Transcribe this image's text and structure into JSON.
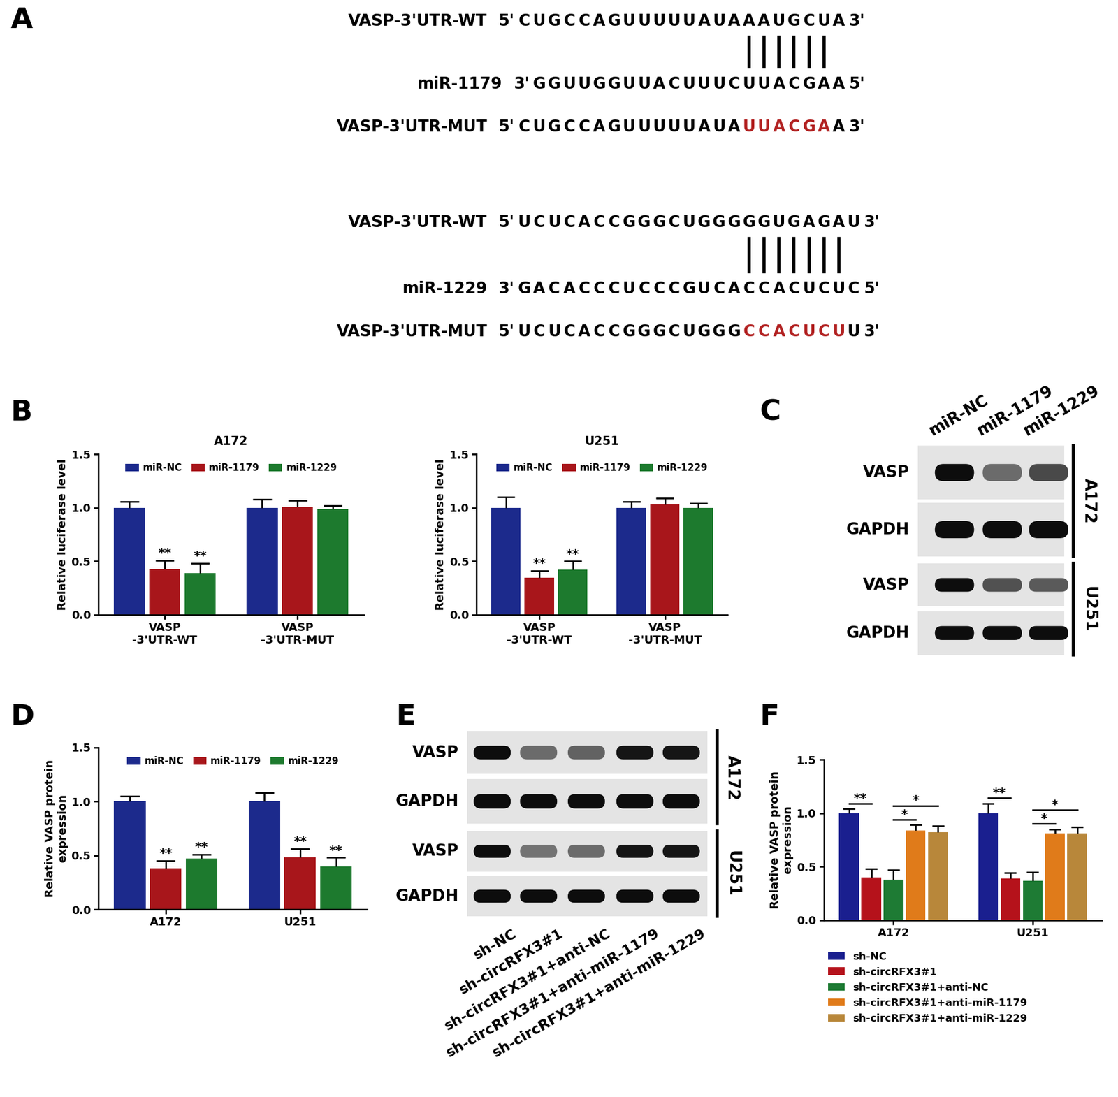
{
  "panel_labels": [
    "A",
    "B",
    "C",
    "D",
    "E",
    "F"
  ],
  "end_labels": {
    "five": "5'",
    "three": "3'"
  },
  "mutation_color": "#b22222",
  "sequence_alignment": [
    {
      "target_label": "VASP-3'UTR-WT",
      "target_seq": "CUGCCAGUUUUUAUAAAUGCUA",
      "mirna_label": "miR-1179",
      "mirna_seq": "GGUUGGUUACUUUCUUACGAA",
      "mutant_label": "VASP-3'UTR-MUT",
      "mutant_seq": "CUGCCAGUUUUUAUAUUACGAA"
    },
    {
      "target_label": "VASP-3'UTR-WT",
      "target_seq": "UCUCACCGGGCUGGGGGUGAGAU",
      "mirna_label": "miR-1229",
      "mirna_seq": "GACACCCUCCCGUCACCACUCUC",
      "mutant_label": "VASP-3'UTR-MUT",
      "mutant_seq": "UCUCACCGGGCUGGGCCACUCUU"
    }
  ],
  "chart_data": [
    {
      "type": "bar",
      "title": "A172",
      "categories": [
        "VASP\n-3'UTR-WT",
        "VASP\n-3'UTR-MUT"
      ],
      "series": [
        {
          "name": "miR-NC",
          "color": "#1c2a8c",
          "values": [
            1.0,
            1.0
          ],
          "errors": [
            0.06,
            0.08
          ]
        },
        {
          "name": "miR-1179",
          "color": "#a8161b",
          "values": [
            0.43,
            1.01
          ],
          "errors": [
            0.08,
            0.06
          ]
        },
        {
          "name": "miR-1229",
          "color": "#1d7a2e",
          "values": [
            0.39,
            0.99
          ],
          "errors": [
            0.09,
            0.03
          ]
        }
      ],
      "ylabel": "Relative luciferase level",
      "ylim": [
        0,
        1.5
      ],
      "yticks": [
        {
          "value": 0,
          "label": "0.0"
        },
        0.5,
        {
          "value": 1,
          "label": "1.0"
        },
        1.5
      ],
      "legend": "upper center",
      "annotations": [
        {
          "text": "**",
          "category": "VASP\n-3'UTR-WT",
          "series": "miR-1179"
        },
        {
          "text": "**",
          "category": "VASP\n-3'UTR-WT",
          "series": "miR-1229"
        }
      ]
    },
    {
      "type": "bar",
      "title": "U251",
      "categories": [
        "VASP\n-3'UTR-WT",
        "VASP\n-3'UTR-MUT"
      ],
      "series": [
        {
          "name": "miR-NC",
          "color": "#1c2a8c",
          "values": [
            1.0,
            1.0
          ],
          "errors": [
            0.1,
            0.06
          ]
        },
        {
          "name": "miR-1179",
          "color": "#a8161b",
          "values": [
            0.35,
            1.03
          ],
          "errors": [
            0.06,
            0.06
          ]
        },
        {
          "name": "miR-1229",
          "color": "#1d7a2e",
          "values": [
            0.42,
            1.0
          ],
          "errors": [
            0.08,
            0.04
          ]
        }
      ],
      "ylabel": "Relative luciferase level",
      "ylim": [
        0,
        1.5
      ],
      "yticks": [
        {
          "value": 0,
          "label": "0.0"
        },
        0.5,
        {
          "value": 1,
          "label": "1.0"
        },
        1.5
      ],
      "legend": "upper center",
      "annotations": [
        {
          "text": "**",
          "category": "VASP\n-3'UTR-WT",
          "series": "miR-1179"
        },
        {
          "text": "**",
          "category": "VASP\n-3'UTR-WT",
          "series": "miR-1229"
        }
      ]
    },
    {
      "type": "bar",
      "categories": [
        "A172",
        "U251"
      ],
      "series": [
        {
          "name": "miR-NC",
          "color": "#1c2a8c",
          "values": [
            1.0,
            1.0
          ],
          "errors": [
            0.05,
            0.08
          ]
        },
        {
          "name": "miR-1179",
          "color": "#a8161b",
          "values": [
            0.38,
            0.48
          ],
          "errors": [
            0.07,
            0.08
          ]
        },
        {
          "name": "miR-1229",
          "color": "#1d7a2e",
          "values": [
            0.47,
            0.4
          ],
          "errors": [
            0.04,
            0.08
          ]
        }
      ],
      "ylabel": "Relative VASP protein\nexpression",
      "ylim": [
        0,
        1.5
      ],
      "yticks": [
        {
          "value": 0,
          "label": "0.0"
        },
        0.5,
        {
          "value": 1,
          "label": "1.0"
        },
        1.5
      ],
      "legend": "upper center",
      "annotations": [
        {
          "text": "**",
          "category": "A172",
          "series": "miR-1179"
        },
        {
          "text": "**",
          "category": "A172",
          "series": "miR-1229"
        },
        {
          "text": "**",
          "category": "U251",
          "series": "miR-1179"
        },
        {
          "text": "**",
          "category": "U251",
          "series": "miR-1229"
        }
      ]
    },
    {
      "type": "bar",
      "categories": [
        "A172",
        "U251"
      ],
      "series": [
        {
          "name": "sh-NC",
          "color": "#1a1f8f",
          "values": [
            1.0,
            1.0
          ],
          "errors": [
            0.04,
            0.09
          ]
        },
        {
          "name": "sh-circRFX3#1",
          "color": "#b5121b",
          "values": [
            0.4,
            0.39
          ],
          "errors": [
            0.08,
            0.05
          ]
        },
        {
          "name": "sh-circRFX3#1+anti-NC",
          "color": "#1e7b34",
          "values": [
            0.38,
            0.37
          ],
          "errors": [
            0.09,
            0.08
          ]
        },
        {
          "name": "sh-circRFX3#1+anti-miR-1179",
          "color": "#e07b1a",
          "values": [
            0.84,
            0.81
          ],
          "errors": [
            0.05,
            0.04
          ]
        },
        {
          "name": "sh-circRFX3#1+anti-miR-1229",
          "color": "#b8873a",
          "values": [
            0.82,
            0.81
          ],
          "errors": [
            0.06,
            0.06
          ]
        }
      ],
      "ylabel": "Relative VASP protein\nexpression",
      "ylim": [
        0,
        1.5
      ],
      "yticks": [
        {
          "value": 0,
          "label": "0.0"
        },
        0.5,
        {
          "value": 1,
          "label": "1.0"
        },
        1.5
      ],
      "legend": "below",
      "comparisons": [
        {
          "text": "**",
          "category": "A172",
          "from": "sh-NC",
          "to": "sh-circRFX3#1"
        },
        {
          "text": "*",
          "category": "A172",
          "from": "sh-circRFX3#1+anti-NC",
          "to": "sh-circRFX3#1+anti-miR-1179"
        },
        {
          "text": "*",
          "category": "A172",
          "from": "sh-circRFX3#1+anti-NC",
          "to": "sh-circRFX3#1+anti-miR-1229"
        },
        {
          "text": "**",
          "category": "U251",
          "from": "sh-NC",
          "to": "sh-circRFX3#1"
        },
        {
          "text": "*",
          "category": "U251",
          "from": "sh-circRFX3#1+anti-NC",
          "to": "sh-circRFX3#1+anti-miR-1179"
        },
        {
          "text": "*",
          "category": "U251",
          "from": "sh-circRFX3#1+anti-NC",
          "to": "sh-circRFX3#1+anti-miR-1229"
        }
      ]
    }
  ],
  "blots": [
    {
      "lanes": [
        "miR-NC",
        "miR-1179",
        "miR-1229"
      ],
      "groups": [
        {
          "name": "A172",
          "rows": [
            {
              "label": "VASP",
              "intensity": [
                1.0,
                0.45,
                0.65
              ]
            },
            {
              "label": "GAPDH",
              "intensity": [
                1.0,
                1.0,
                1.0
              ]
            }
          ]
        },
        {
          "name": "U251",
          "rows": [
            {
              "label": "VASP",
              "intensity": [
                1.0,
                0.6,
                0.55
              ]
            },
            {
              "label": "GAPDH",
              "intensity": [
                1.0,
                1.0,
                1.0
              ]
            }
          ]
        }
      ]
    },
    {
      "lanes": [
        "sh-NC",
        "sh-circRFX3#1",
        "sh-circRFX3#1+anti-NC",
        "sh-circRFX3#1+anti-miR-1179",
        "sh-circRFX3#1+anti-miR-1229"
      ],
      "groups": [
        {
          "name": "A172",
          "rows": [
            {
              "label": "VASP",
              "intensity": [
                1.0,
                0.45,
                0.5,
                0.95,
                0.95
              ]
            },
            {
              "label": "GAPDH",
              "intensity": [
                1.0,
                1.0,
                1.0,
                1.0,
                1.0
              ]
            }
          ]
        },
        {
          "name": "U251",
          "rows": [
            {
              "label": "VASP",
              "intensity": [
                1.0,
                0.4,
                0.45,
                0.95,
                0.95
              ]
            },
            {
              "label": "GAPDH",
              "intensity": [
                1.0,
                1.0,
                1.0,
                1.0,
                1.0
              ]
            }
          ]
        }
      ]
    }
  ]
}
